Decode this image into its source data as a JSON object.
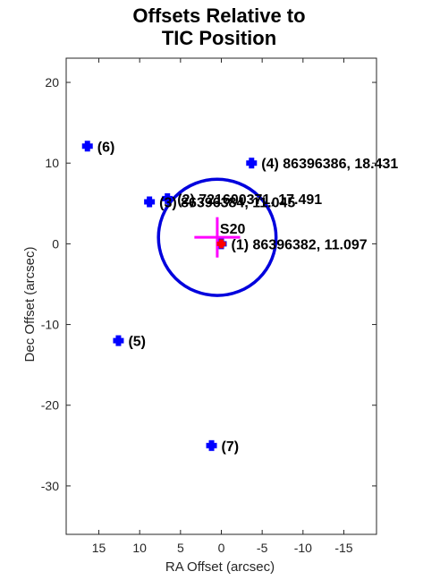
{
  "chart_data": {
    "type": "scatter",
    "title": [
      "Offsets Relative to",
      "TIC Position"
    ],
    "xlabel": "RA Offset (arcsec)",
    "ylabel": "Dec Offset (arcsec)",
    "xlim": [
      19,
      -19
    ],
    "ylim": [
      -36,
      23
    ],
    "x_reversed": true,
    "xticks": [
      15,
      10,
      5,
      0,
      -5,
      -10,
      -15
    ],
    "xtick_labels": [
      "15",
      "10",
      "5",
      "0",
      "-5",
      "-10",
      "-15"
    ],
    "yticks": [
      20,
      10,
      0,
      -10,
      -20,
      -30
    ],
    "ytick_labels": [
      "20",
      "10",
      "0",
      "-10",
      "-20",
      "-30"
    ],
    "grid": false,
    "colors": {
      "tic_marker": "#0000ff",
      "circle": "#0000dd",
      "cross": "#ff00ff",
      "centroid": "#ff0000"
    },
    "points": [
      {
        "x": 0.0,
        "y": 0.0,
        "label": "(1) 86396382, 11.097"
      },
      {
        "x": 6.6,
        "y": 5.6,
        "label": "(2) 721600371, 17.491"
      },
      {
        "x": 8.8,
        "y": 5.2,
        "label": "(3) 86396384, 11.045"
      },
      {
        "x": -3.7,
        "y": 10.0,
        "label": "(4) 86396386, 18.431"
      },
      {
        "x": 12.6,
        "y": -12.0,
        "label": "(5)"
      },
      {
        "x": 16.4,
        "y": 12.1,
        "label": "(6)"
      },
      {
        "x": 1.2,
        "y": -25.0,
        "label": "(7)"
      }
    ],
    "circle": {
      "x": 0.5,
      "y": 0.8,
      "radius": 7.2
    },
    "cross": {
      "x": 0.5,
      "y": 0.8,
      "half_width": 2.8,
      "half_height": 2.5,
      "label": "S20"
    },
    "centroid": {
      "x": 0.0,
      "y": 0.0
    }
  }
}
